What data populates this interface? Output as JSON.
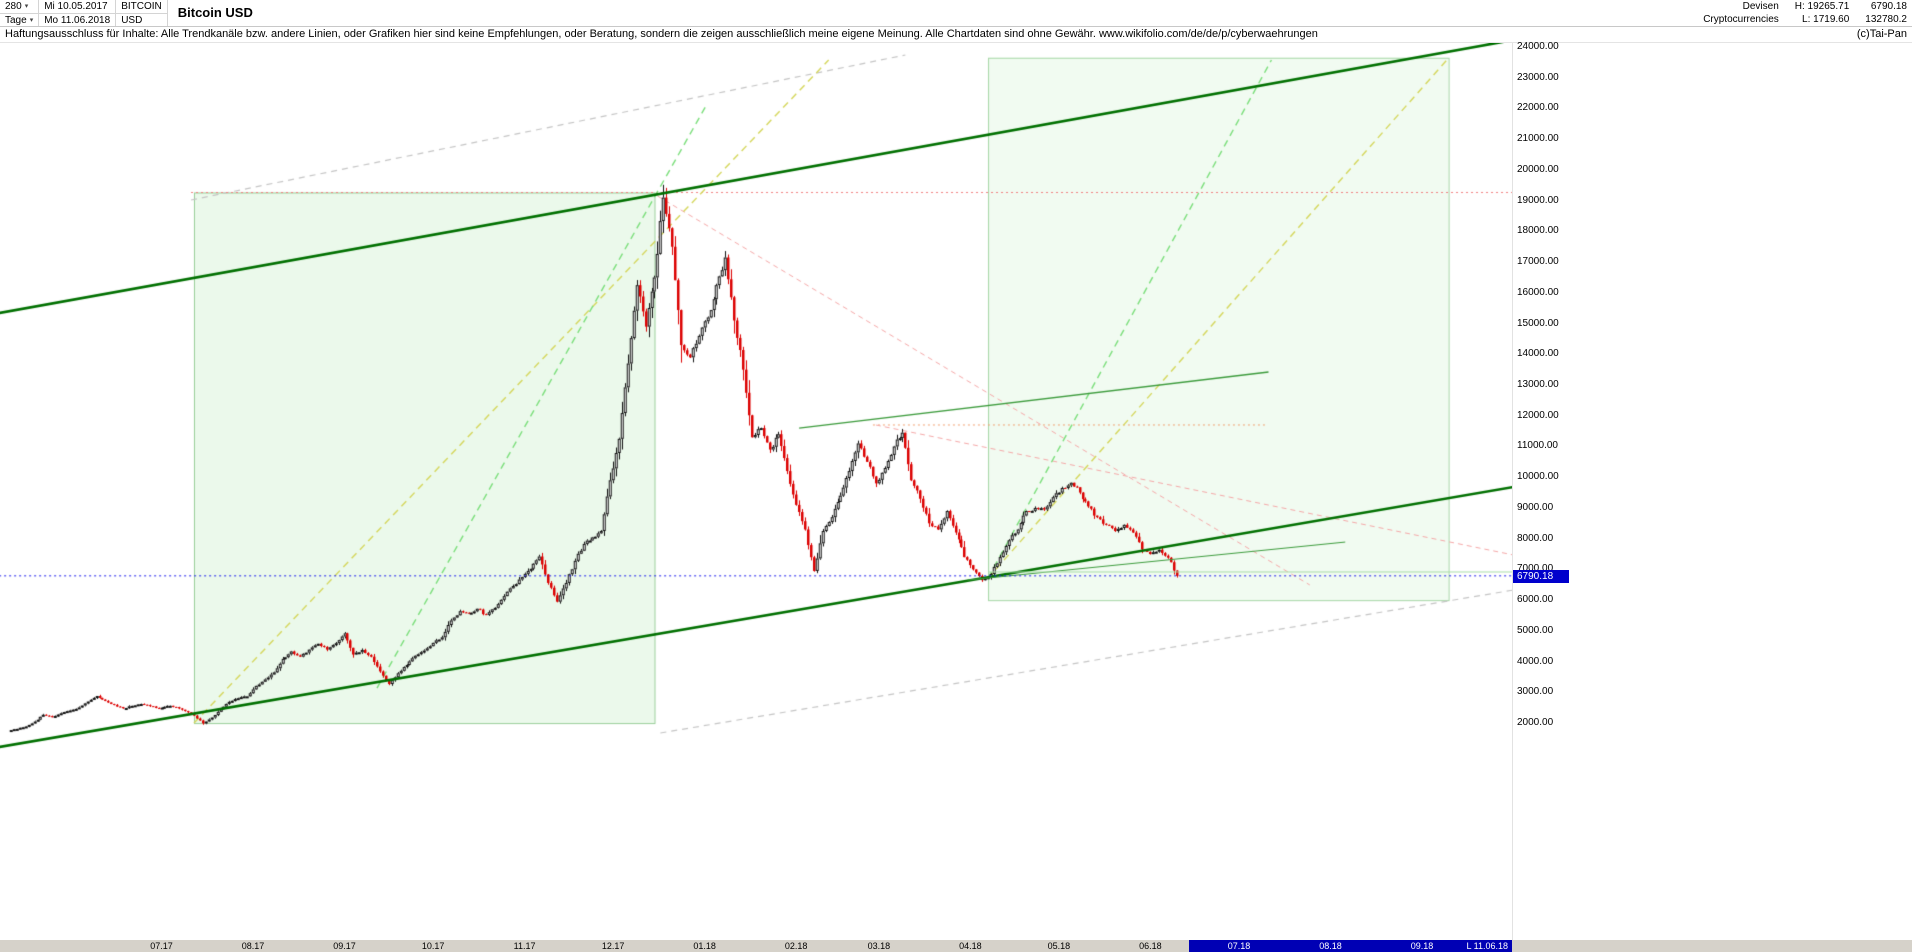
{
  "header": {
    "bars_count": "280",
    "period_label": "Tage",
    "date_from": "Mi 10.05.2017",
    "date_to": "Mo 11.06.2018",
    "symbol": "BITCOIN",
    "currency": "USD",
    "title": "Bitcoin USD",
    "category_line1": "Devisen",
    "category_line2": "Cryptocurrencies",
    "high_label": "H: 19265.71",
    "low_label": "L: 1719.60",
    "last_price": "6790.18",
    "volume": "132780.2"
  },
  "disclaimer": {
    "text": "Haftungsausschluss für Inhalte: Alle Trendkanäle bzw. andere Linien, oder Grafiken hier sind keine Empfehlungen, oder Beratung, sondern die zeigen ausschließlich meine eigene Meinung. Alle Chartdaten sind ohne Gewähr.  www.wikifolio.com/de/de/p/cyberwaehrungen",
    "copyright": "(c)Tai-Pan"
  },
  "chart_data": {
    "type": "candlestick",
    "title": "Bitcoin USD",
    "instrument": "BITCOIN / USD",
    "start_date": "10.05.2017",
    "end_date": "11.06.2018",
    "interval_days": 3,
    "period_high": 19265.71,
    "period_low": 1719.6,
    "current_price": 6790.18,
    "price_axis": {
      "max": 24000,
      "min": 2000,
      "step": 1000,
      "unit": "USD"
    },
    "closes": [
      1760,
      1810,
      1890,
      2050,
      2270,
      2190,
      2320,
      2410,
      2510,
      2700,
      2880,
      2720,
      2590,
      2480,
      2560,
      2620,
      2550,
      2480,
      2560,
      2520,
      2390,
      2240,
      1990,
      2180,
      2450,
      2690,
      2810,
      2870,
      3210,
      3420,
      3650,
      4090,
      4330,
      4160,
      4390,
      4580,
      4390,
      4600,
      4920,
      4230,
      4380,
      4160,
      3680,
      3270,
      3620,
      3890,
      4190,
      4360,
      4610,
      4790,
      5340,
      5640,
      5580,
      5720,
      5520,
      5750,
      6130,
      6460,
      6750,
      7020,
      7420,
      6560,
      5950,
      6560,
      7280,
      7830,
      8040,
      8250,
      9900,
      11250,
      13700,
      16250,
      14900,
      16500,
      19100,
      17500,
      14300,
      13900,
      14600,
      15200,
      16250,
      17150,
      15100,
      13500,
      11300,
      11600,
      10900,
      11400,
      10200,
      9100,
      8300,
      6950,
      8250,
      8700,
      9400,
      10200,
      11100,
      10500,
      9800,
      10300,
      11000,
      11450,
      9900,
      9300,
      8500,
      8300,
      8900,
      8200,
      7400,
      7000,
      6650,
      6850,
      7400,
      7950,
      8300,
      8900,
      9000,
      8950,
      9350,
      9650,
      9820,
      9500,
      9050,
      8700,
      8450,
      8250,
      8450,
      8200,
      7650,
      7500,
      7640,
      7380,
      6790.18
    ],
    "x_labels": [
      {
        "label": "07.17",
        "day": 52
      },
      {
        "label": "08.17",
        "day": 83
      },
      {
        "label": "09.17",
        "day": 114
      },
      {
        "label": "10.17",
        "day": 144
      },
      {
        "label": "11.17",
        "day": 175
      },
      {
        "label": "12.17",
        "day": 205
      },
      {
        "label": "01.18",
        "day": 236
      },
      {
        "label": "02.18",
        "day": 267
      },
      {
        "label": "03.18",
        "day": 295
      },
      {
        "label": "04.18",
        "day": 326
      },
      {
        "label": "05.18",
        "day": 356
      },
      {
        "label": "06.18",
        "day": 387
      },
      {
        "label": "07.18",
        "day": 417,
        "future": true
      },
      {
        "label": "08.18",
        "day": 448,
        "future": true
      },
      {
        "label": "09.18",
        "day": 479,
        "future": true
      }
    ],
    "last_date_label": "L  11.06.18",
    "overlays": [
      {
        "name": "projection-box-left",
        "type": "rect",
        "d0": 63,
        "p0": 19265,
        "d1": 219,
        "p1": 2000,
        "fill": "rgba(190,234,190,0.30)",
        "stroke": "#99cf99"
      },
      {
        "name": "projection-box-right",
        "type": "rect",
        "d0": 332,
        "p0": 23650,
        "d1": 488,
        "p1": 6000,
        "fill": "rgba(198,238,198,0.25)",
        "stroke": "#a5d6a5"
      },
      {
        "name": "gray-channel-top",
        "type": "line",
        "d0": 62,
        "p0": 19021,
        "d1": 304,
        "p1": 23740,
        "color": "#c4c4c4",
        "width": 1.2,
        "dash": [
          6,
          5
        ]
      },
      {
        "name": "gray-channel-bottom",
        "type": "line",
        "d0": 221,
        "p0": 1677,
        "d1": 510,
        "p1": 6330,
        "color": "#c4c4c4",
        "width": 1.2,
        "dash": [
          6,
          5
        ]
      },
      {
        "name": "high-line",
        "type": "line",
        "d0": 62,
        "p0": 19265.71,
        "d1": 510,
        "p1": 19265.71,
        "color": "#f08080",
        "width": 1,
        "dash": [
          2,
          3
        ]
      },
      {
        "name": "resistance-11700",
        "type": "line",
        "d0": 293,
        "p0": 11700,
        "d1": 426,
        "p1": 11700,
        "color": "#f0a070",
        "width": 1,
        "dash": [
          2,
          3
        ]
      },
      {
        "name": "downtrend-from-peak",
        "type": "line",
        "d0": 220,
        "p0": 19152,
        "d1": 441,
        "p1": 6493,
        "color": "#f4a6a6",
        "width": 1,
        "dash": [
          5,
          4
        ]
      },
      {
        "name": "downtrend-feb-high",
        "type": "line",
        "d0": 294,
        "p0": 11699,
        "d1": 510,
        "p1": 7469,
        "color": "#f4a6a6",
        "width": 1,
        "dash": [
          5,
          4
        ]
      },
      {
        "name": "fan-yellow-left",
        "type": "line",
        "d0": 63,
        "p0": 2000,
        "d1": 278,
        "p1": 23577,
        "color": "#d4d65a",
        "width": 1.4,
        "dash": [
          7,
          5
        ]
      },
      {
        "name": "fan-green-left",
        "type": "line",
        "d0": 125,
        "p0": 3139,
        "d1": 237,
        "p1": 22178,
        "color": "#7ade7a",
        "width": 1.4,
        "dash": [
          7,
          5
        ]
      },
      {
        "name": "fan-green-right",
        "type": "line",
        "d0": 332,
        "p0": 6718,
        "d1": 428,
        "p1": 23577,
        "color": "#7ade7a",
        "width": 1.4,
        "dash": [
          7,
          5
        ]
      },
      {
        "name": "fan-yellow-right",
        "type": "line",
        "d0": 332,
        "p0": 6718,
        "d1": 488,
        "p1": 23642,
        "color": "#d4d65a",
        "width": 1.4,
        "dash": [
          7,
          5
        ]
      },
      {
        "name": "upper-trend-channel",
        "type": "line",
        "d0": -3,
        "p0": 15344,
        "d1": 510,
        "p1": 24228,
        "color": "#007000",
        "width": 2.6,
        "above": true
      },
      {
        "name": "lower-trend-channel",
        "type": "line",
        "d0": -3,
        "p0": 1221,
        "d1": 510,
        "p1": 9682,
        "color": "#007000",
        "width": 2.6,
        "above": true
      },
      {
        "name": "mid-resistance",
        "type": "line",
        "d0": 268,
        "p0": 11601,
        "d1": 427,
        "p1": 13424,
        "color": "#3a9a3a",
        "width": 1.3,
        "above": true
      },
      {
        "name": "minor-support",
        "type": "line",
        "d0": 325,
        "p0": 6653,
        "d1": 453,
        "p1": 7890,
        "color": "#3a9a3a",
        "width": 1,
        "above": true
      },
      {
        "name": "support-6900",
        "type": "line",
        "d0": 332,
        "p0": 6916,
        "d1": 510,
        "p1": 6916,
        "color": "#a8dca8",
        "width": 1,
        "above": true
      },
      {
        "name": "current-price-line",
        "type": "line",
        "d0": -3,
        "p0": 6790.18,
        "d1": 510,
        "p1": 6790.18,
        "color": "#1a1aee",
        "width": 1,
        "dash": [
          2,
          3
        ],
        "above": true
      }
    ]
  }
}
